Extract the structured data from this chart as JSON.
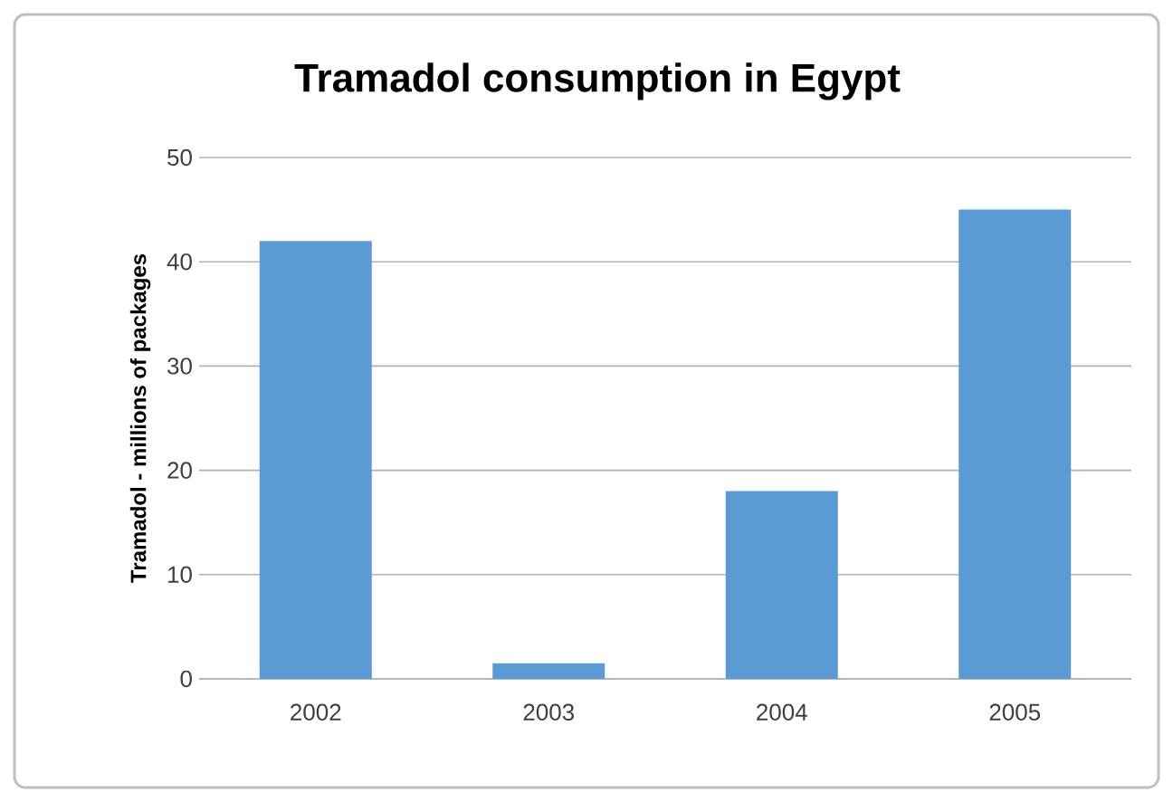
{
  "chart_data": {
    "type": "bar",
    "title": "Tramadol consumption in Egypt",
    "ylabel": "Tramadol - millions of packages",
    "categories": [
      "2002",
      "2003",
      "2004",
      "2005"
    ],
    "values": [
      42,
      1.5,
      18,
      45
    ],
    "color": "#5b9bd5",
    "ylim": [
      0,
      50
    ],
    "yticks": [
      0,
      10,
      20,
      30,
      40,
      50
    ],
    "grid": "y"
  }
}
